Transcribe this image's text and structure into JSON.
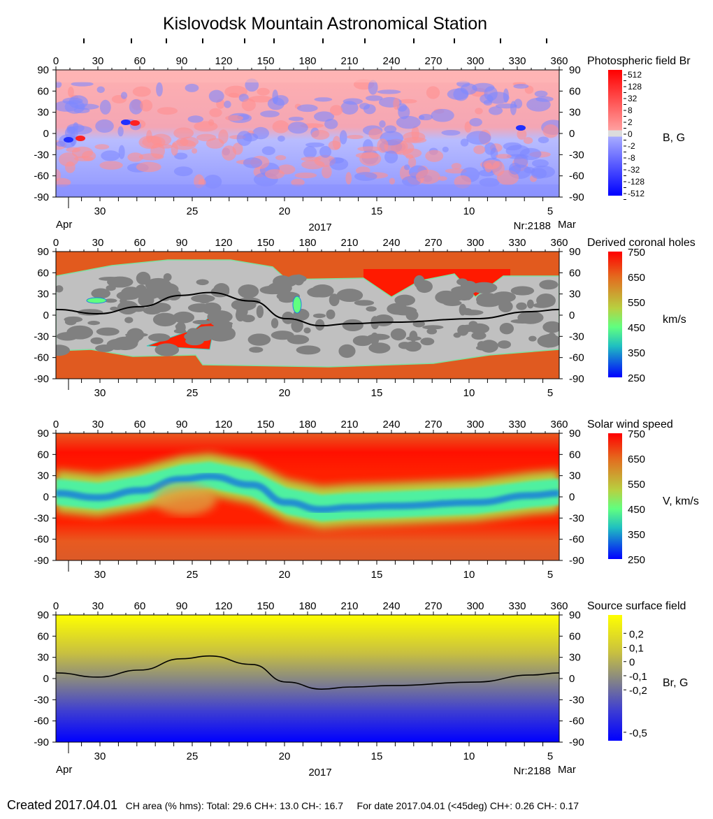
{
  "title": "Kislovodsk Mountain Astronomical Station",
  "footer": {
    "created_label": "Created",
    "created_date": "2017.04.01",
    "ch_area": "CH area (% hms): Total: 29.6 CH+: 13.0   CH-: 16.7",
    "for_date": "For date 2017.04.01 (<45deg) CH+: 0.26    CH-: 0.17"
  },
  "chart_data": [
    {
      "type": "heatmap",
      "title": "Photospheric field Br",
      "unit_label": "B, G",
      "x_ticks": [
        0,
        30,
        60,
        90,
        120,
        150,
        180,
        210,
        240,
        270,
        300,
        330,
        360
      ],
      "y_ticks": [
        90,
        60,
        30,
        0,
        -30,
        -60,
        -90
      ],
      "xlim": [
        0,
        360
      ],
      "ylim": [
        -90,
        90
      ],
      "date_ticks": [
        "30",
        "25",
        "20",
        "15",
        "10",
        "5"
      ],
      "date_start": "Apr",
      "date_end": "Mar",
      "year": "2017",
      "rotation": "Nr:2188",
      "colorbar": {
        "ticks": [
          "512",
          "128",
          "32",
          "8",
          "2",
          "0",
          "-2",
          "-8",
          "-32",
          "-128",
          "-512"
        ],
        "colors": [
          "#ff0000",
          "#ff8080",
          "#dcdcdc",
          "#a0a8ff",
          "#0000ff"
        ]
      }
    },
    {
      "type": "heatmap",
      "title": "Derived coronal holes",
      "unit_label": "km/s",
      "x_ticks": [
        0,
        30,
        60,
        90,
        120,
        150,
        180,
        210,
        240,
        270,
        300,
        330,
        360
      ],
      "y_ticks": [
        90,
        60,
        30,
        0,
        -30,
        -60,
        -90
      ],
      "xlim": [
        0,
        360
      ],
      "ylim": [
        -90,
        90
      ],
      "date_ticks": [
        "30",
        "25",
        "20",
        "15",
        "10",
        "5"
      ],
      "colorbar": {
        "range": [
          250,
          750
        ],
        "ticks": [
          750,
          650,
          550,
          450,
          350,
          250
        ]
      },
      "neutral_line": {
        "lon": [
          0,
          30,
          60,
          90,
          110,
          140,
          165,
          190,
          210,
          240,
          300,
          340,
          360
        ],
        "lat": [
          8,
          2,
          12,
          28,
          32,
          20,
          -5,
          -15,
          -12,
          -10,
          -5,
          5,
          8
        ]
      }
    },
    {
      "type": "heatmap",
      "title": "Solar wind speed",
      "unit_label": "V, km/s",
      "x_ticks": [
        0,
        30,
        60,
        90,
        120,
        150,
        180,
        210,
        240,
        270,
        300,
        330,
        360
      ],
      "y_ticks": [
        90,
        60,
        30,
        0,
        -30,
        -60,
        -90
      ],
      "xlim": [
        0,
        360
      ],
      "ylim": [
        -90,
        90
      ],
      "date_ticks": [
        "30",
        "25",
        "20",
        "15",
        "10",
        "5"
      ],
      "colorbar": {
        "range": [
          250,
          750
        ],
        "ticks": [
          750,
          650,
          550,
          450,
          350,
          250
        ]
      }
    },
    {
      "type": "heatmap",
      "title": "Source surface field",
      "unit_label": "Br, G",
      "x_ticks": [
        0,
        30,
        60,
        90,
        120,
        150,
        180,
        210,
        240,
        270,
        300,
        330,
        360
      ],
      "y_ticks": [
        90,
        60,
        30,
        0,
        -30,
        -60,
        -90
      ],
      "xlim": [
        0,
        360
      ],
      "ylim": [
        -90,
        90
      ],
      "date_ticks": [
        "30",
        "25",
        "20",
        "15",
        "10",
        "5"
      ],
      "date_start": "Apr",
      "date_end": "Mar",
      "year": "2017",
      "rotation": "Nr:2188",
      "colorbar": {
        "range": [
          -0.56,
          0.33
        ],
        "ticks": [
          "0,2",
          "0,1",
          "0",
          "-0,1",
          "-0,2",
          "-0,5"
        ],
        "tick_values": [
          0.2,
          0.1,
          0,
          -0.1,
          -0.2,
          -0.5
        ]
      },
      "neutral_line": {
        "lon": [
          0,
          30,
          60,
          90,
          110,
          140,
          165,
          190,
          210,
          240,
          300,
          340,
          360
        ],
        "lat": [
          8,
          2,
          12,
          28,
          32,
          20,
          -5,
          -15,
          -12,
          -10,
          -5,
          5,
          8
        ]
      }
    }
  ]
}
